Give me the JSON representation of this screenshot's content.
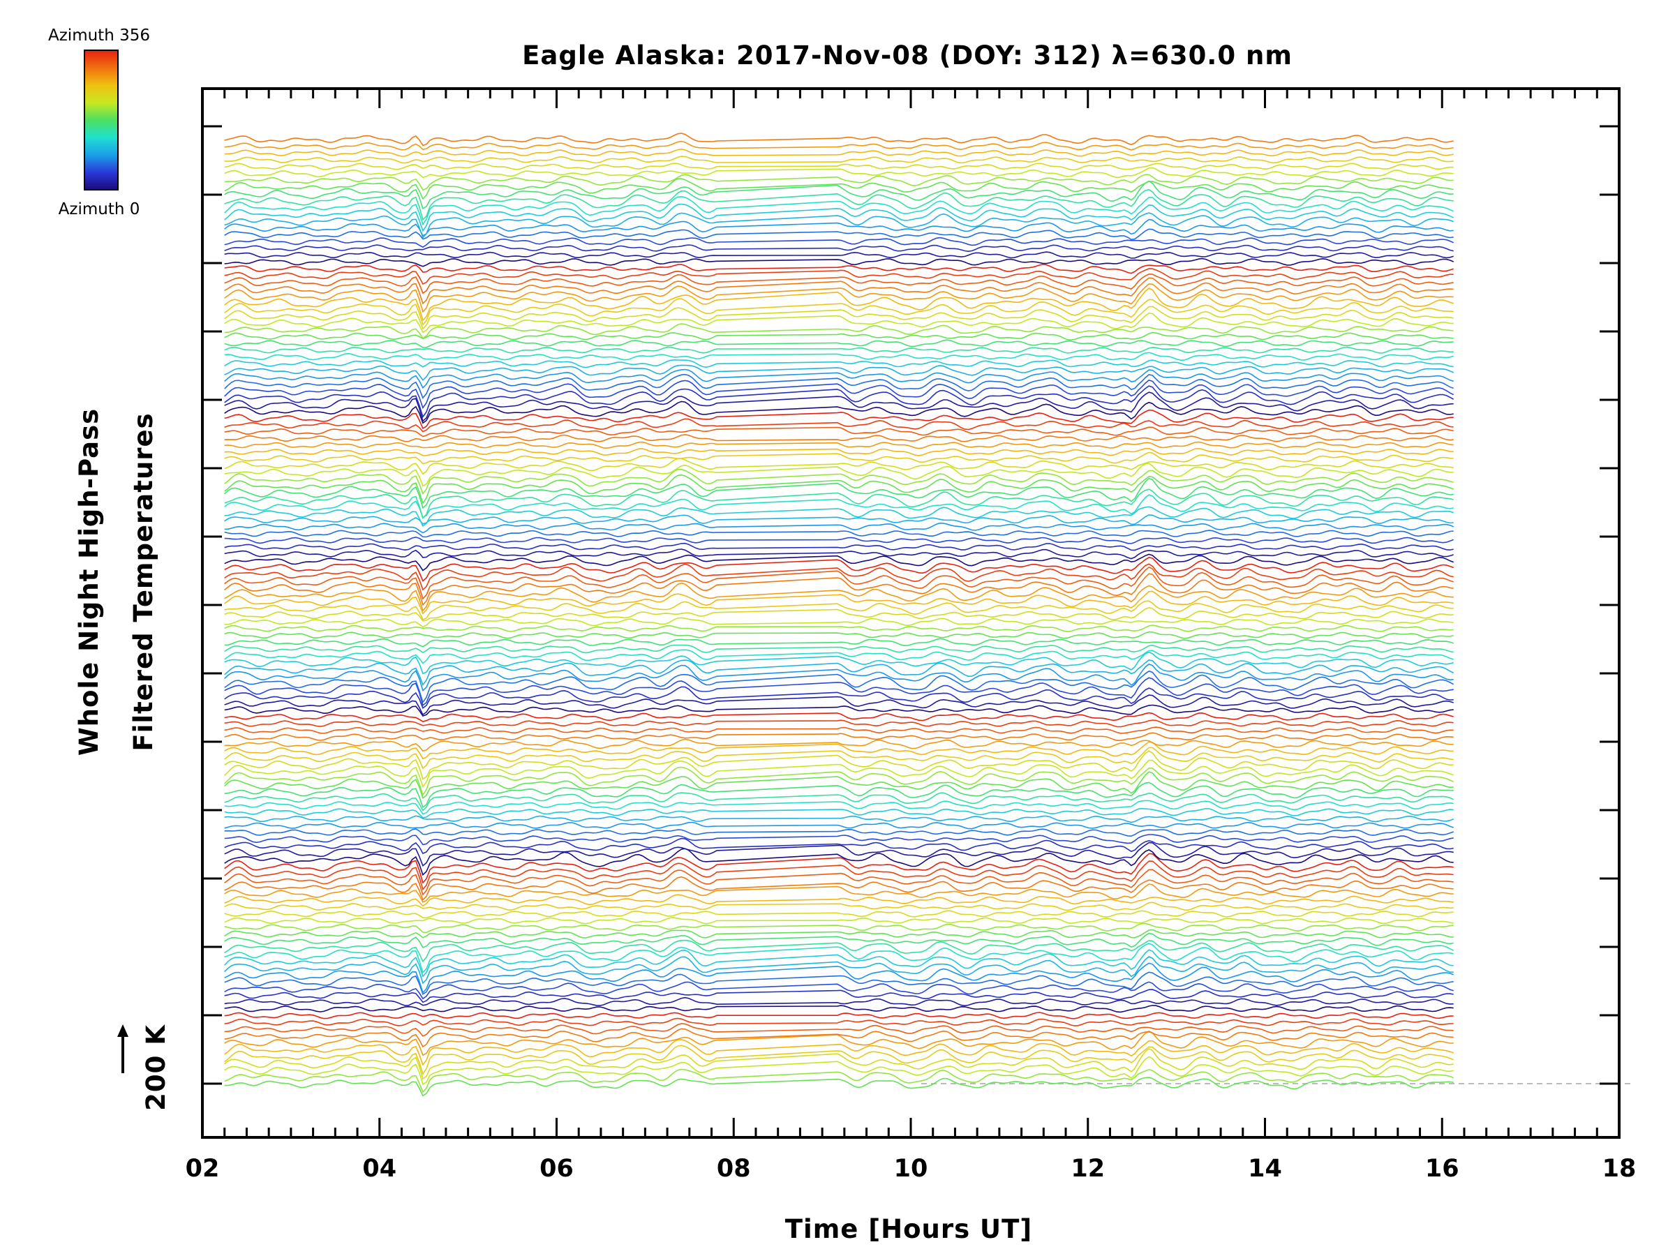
{
  "chart_data": {
    "type": "line",
    "title": "Eagle Alaska: 2017-Nov-08 (DOY: 312) λ=630.0 nm",
    "xlabel": "Time [Hours UT]",
    "ylabel_line1": "Whole Night High-Pass",
    "ylabel_line2": "Filtered Temperatures",
    "x_tick_labels": [
      "02",
      "04",
      "06",
      "08",
      "10",
      "12",
      "14",
      "16",
      "18"
    ],
    "xlim": [
      2,
      18
    ],
    "data_x_range": [
      2.25,
      16.15
    ],
    "gap_hours": [
      7.85,
      9.15
    ],
    "scale_label": "200 K",
    "colorbar": {
      "top_label": "Azimuth 356",
      "bottom_label": "Azimuth 0",
      "colors": [
        "#1a0a7a",
        "#2a3ad8",
        "#1aa0e8",
        "#20e0d0",
        "#4de060",
        "#c8e820",
        "#f0c010",
        "#f07010",
        "#e82010"
      ]
    },
    "series_count": 140,
    "grid": false,
    "legend": "colorbar top-left"
  }
}
